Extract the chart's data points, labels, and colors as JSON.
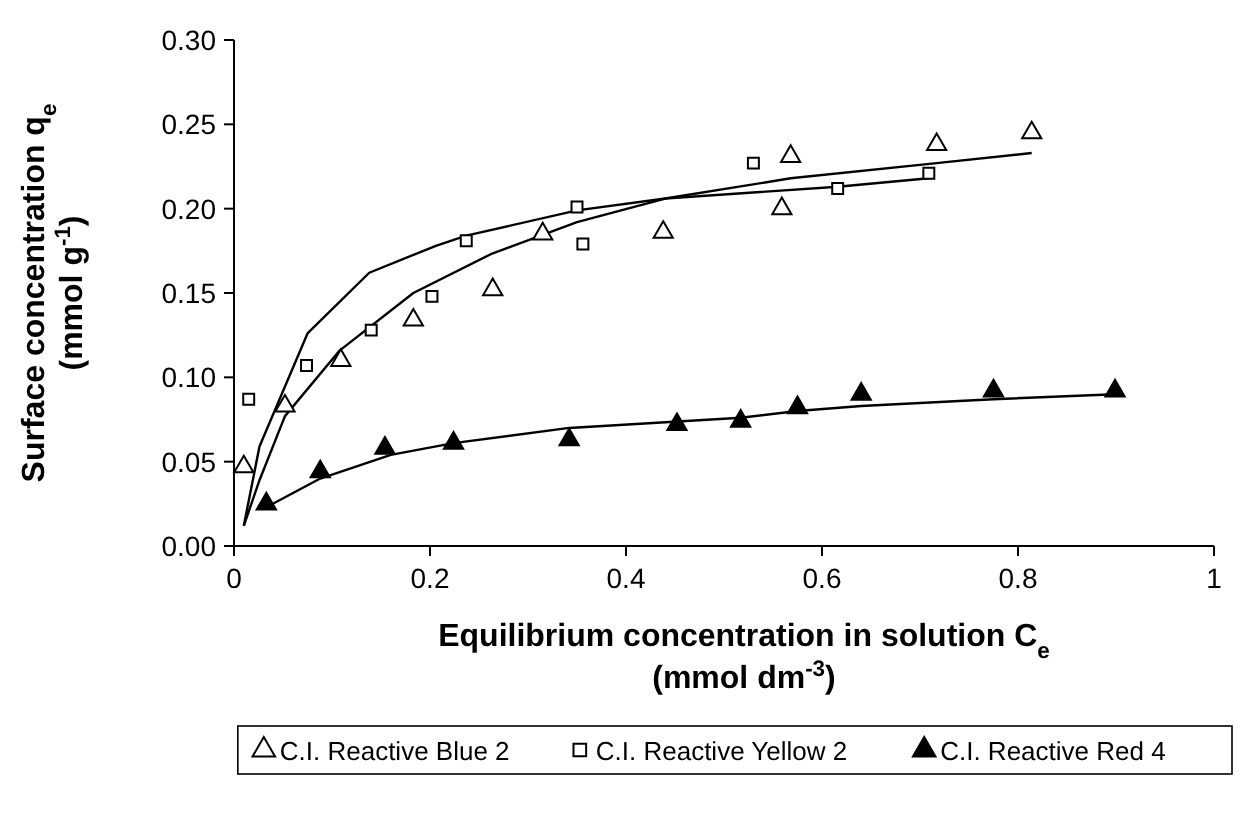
{
  "chart_data": {
    "type": "scatter",
    "xlabel": "Equilibrium concentration in solution C$_{e}$\n(mmol dm$^{-3}$)",
    "ylabel": "Surface concentration q$_{e}$\n(mmol g$^{-1}$)",
    "xlim": [
      0,
      1
    ],
    "xticks": [
      0,
      0.2,
      0.4,
      0.6,
      0.8,
      1
    ],
    "ylim": [
      0,
      0.3
    ],
    "yticks": [
      {
        "value": 0,
        "label": "0.00"
      },
      {
        "value": 0.05,
        "label": "0.05"
      },
      {
        "value": 0.1,
        "label": "0.10"
      },
      {
        "value": 0.15,
        "label": "0.15"
      },
      {
        "value": 0.2,
        "label": "0.20"
      },
      {
        "value": 0.25,
        "label": "0.25"
      },
      {
        "value": 0.3,
        "label": "0.30"
      }
    ],
    "grid": false,
    "legend": "bottom",
    "series": [
      {
        "name": "C.I. Reactive Blue 2",
        "marker": "triangle",
        "color": "#ffffff",
        "x": [
          0.01,
          0.052,
          0.109,
          0.183,
          0.264,
          0.315,
          0.438,
          0.559,
          0.568,
          0.717,
          0.814
        ],
        "values": [
          0.047,
          0.083,
          0.11,
          0.134,
          0.152,
          0.185,
          0.186,
          0.2,
          0.231,
          0.238,
          0.245
        ]
      },
      {
        "name": "C.I. Reactive Yellow 2",
        "marker": "square",
        "color": "#ffffff",
        "x": [
          0.015,
          0.074,
          0.14,
          0.202,
          0.237,
          0.35,
          0.356,
          0.53,
          0.616,
          0.709
        ],
        "values": [
          0.087,
          0.107,
          0.128,
          0.148,
          0.181,
          0.201,
          0.179,
          0.227,
          0.212,
          0.221
        ]
      },
      {
        "name": "C.I. Reactive Red 4",
        "marker": "triangle",
        "color": "#000000",
        "x": [
          0.033,
          0.088,
          0.154,
          0.224,
          0.342,
          0.452,
          0.517,
          0.575,
          0.64,
          0.775,
          0.899
        ],
        "values": [
          0.025,
          0.044,
          0.058,
          0.061,
          0.063,
          0.072,
          0.074,
          0.082,
          0.09,
          0.092,
          0.092
        ]
      },
      {
        "type": "line",
        "marker": "none",
        "color": "#000000",
        "x": [
          0.01,
          0.026,
          0.052,
          0.108,
          0.183,
          0.262,
          0.35,
          0.44,
          0.568,
          0.717,
          0.814
        ],
        "values": [
          0.012,
          0.039,
          0.077,
          0.116,
          0.15,
          0.173,
          0.192,
          0.206,
          0.218,
          0.227,
          0.233
        ]
      },
      {
        "type": "line",
        "marker": "none",
        "color": "#000000",
        "x": [
          0.01,
          0.026,
          0.075,
          0.138,
          0.206,
          0.237,
          0.35,
          0.44,
          0.616,
          0.709
        ],
        "values": [
          0.012,
          0.059,
          0.126,
          0.162,
          0.178,
          0.184,
          0.199,
          0.206,
          0.213,
          0.218
        ]
      },
      {
        "type": "line",
        "marker": "none",
        "color": "#000000",
        "x": [
          0.033,
          0.088,
          0.16,
          0.224,
          0.342,
          0.517,
          0.575,
          0.64,
          0.775,
          0.899
        ],
        "values": [
          0.023,
          0.04,
          0.054,
          0.061,
          0.07,
          0.076,
          0.08,
          0.083,
          0.087,
          0.09
        ]
      }
    ]
  }
}
